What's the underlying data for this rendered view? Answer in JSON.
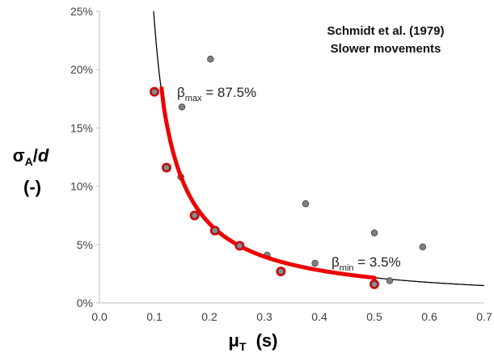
{
  "chart_data": {
    "type": "scatter",
    "title": "Schmidt et al. (1979)",
    "subtitle": "Slower movements",
    "xlabel": {
      "main": "μ",
      "sub": "T",
      "unit": "(s)"
    },
    "ylabel": {
      "main": "σ",
      "sub": "A",
      "div": "/",
      "var": "d",
      "unit": "(-)"
    },
    "xlim": [
      0.0,
      0.7
    ],
    "ylim": [
      0,
      25
    ],
    "x_ticks": [
      0.0,
      0.1,
      0.2,
      0.3,
      0.4,
      0.5,
      0.6,
      0.7
    ],
    "x_tick_labels": [
      "0.0",
      "0.1",
      "0.2",
      "0.3",
      "0.4",
      "0.5",
      "0.6",
      "0.7"
    ],
    "y_ticks": [
      0,
      5,
      10,
      15,
      20,
      25
    ],
    "y_tick_labels": [
      "0%",
      "5%",
      "10%",
      "15%",
      "20%",
      "25%"
    ],
    "grid": false,
    "series": [
      {
        "kind": "points",
        "color": "#808080",
        "points": [
          [
            0.1,
            18.1
          ],
          [
            0.122,
            11.6
          ],
          [
            0.148,
            10.8
          ],
          [
            0.15,
            16.8
          ],
          [
            0.173,
            7.5
          ],
          [
            0.202,
            20.9
          ],
          [
            0.21,
            6.2
          ],
          [
            0.255,
            4.9
          ],
          [
            0.305,
            4.1
          ],
          [
            0.33,
            2.7
          ],
          [
            0.375,
            8.5
          ],
          [
            0.392,
            3.4
          ],
          [
            0.5,
            6.0
          ],
          [
            0.5,
            1.6
          ],
          [
            0.528,
            1.9
          ],
          [
            0.588,
            4.8
          ]
        ]
      },
      {
        "kind": "highlighted-points",
        "color": "#e00000",
        "points": [
          [
            0.1,
            18.1
          ],
          [
            0.122,
            11.6
          ],
          [
            0.173,
            7.5
          ],
          [
            0.21,
            6.2
          ],
          [
            0.255,
            4.9
          ],
          [
            0.33,
            2.7
          ],
          [
            0.5,
            1.6
          ]
        ]
      },
      {
        "kind": "fit-curve",
        "color": "#000000",
        "model": "y = a / (x - b)",
        "a": 0.95,
        "b": 0.0605,
        "x_range": [
          0.1,
          0.7
        ]
      },
      {
        "kind": "bounded-fit",
        "color": "#ee0000",
        "model": "y = a / (x - b)",
        "a": 0.95,
        "b": 0.0605,
        "x_range": [
          0.113,
          0.5
        ],
        "start_point": [
          0.113,
          18.4
        ]
      }
    ],
    "annotations": [
      {
        "symbol": "β",
        "sub": "max",
        "text": " = 87.5%"
      },
      {
        "symbol": "β",
        "sub": "min",
        "text": " = 3.5%"
      }
    ]
  }
}
